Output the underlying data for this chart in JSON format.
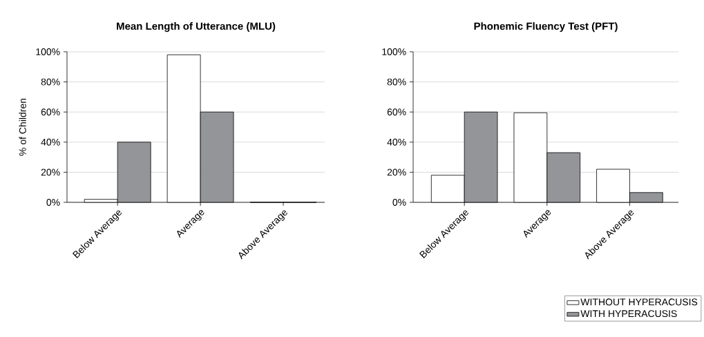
{
  "chart_data": [
    {
      "type": "bar",
      "title": "Mean Length of Utterance (MLU)",
      "ylabel": "% of Children",
      "categories": [
        "Below Average",
        "Average",
        "Above Average"
      ],
      "series": [
        {
          "color": "#ffffff",
          "values": [
            2,
            98,
            0
          ]
        },
        {
          "color": "#939598",
          "values": [
            40,
            60,
            0
          ]
        }
      ],
      "ylim": [
        0,
        100
      ],
      "yticks": [
        {
          "value": 0,
          "label": "0%"
        },
        {
          "value": 20,
          "label": "20%"
        },
        {
          "value": 40,
          "label": "40%"
        },
        {
          "value": 60,
          "label": "60%"
        },
        {
          "value": 80,
          "label": "80%"
        },
        {
          "value": 100,
          "label": "100%"
        }
      ],
      "grid": "y"
    },
    {
      "type": "bar",
      "title": "Phonemic Fluency Test (PFT)",
      "categories": [
        "Below Average",
        "Average",
        "Above Average"
      ],
      "series": [
        {
          "name": "WITHOUT HYPERACUSIS",
          "color": "#ffffff",
          "values": [
            18,
            59.5,
            22
          ]
        },
        {
          "name": "WITH HYPERACUSIS",
          "color": "#939598",
          "values": [
            60,
            33,
            6.5
          ]
        }
      ],
      "ylim": [
        0,
        100
      ],
      "yticks": [
        {
          "value": 0,
          "label": "0%"
        },
        {
          "value": 20,
          "label": "20%"
        },
        {
          "value": 40,
          "label": "40%"
        },
        {
          "value": 60,
          "label": "60%"
        },
        {
          "value": 80,
          "label": "80%"
        },
        {
          "value": 100,
          "label": "100%"
        }
      ],
      "grid": "y",
      "legend": "bottom right"
    }
  ]
}
